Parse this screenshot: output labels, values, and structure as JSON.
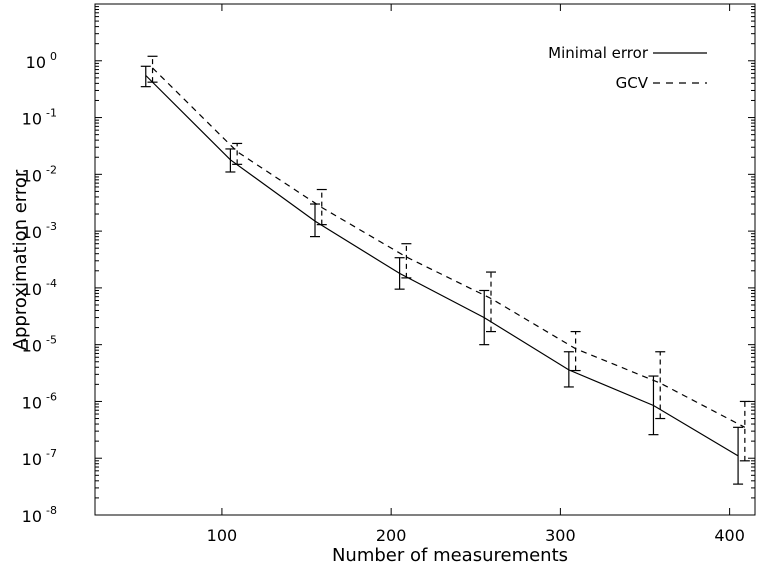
{
  "chart_data": {
    "type": "line",
    "title": "",
    "xlabel": "Number of measurements",
    "ylabel": "Approximation error",
    "xlim": [
      25,
      415
    ],
    "ylim": [
      1e-08,
      10.0
    ],
    "y_scale": "log",
    "x_ticks": [
      100,
      200,
      300,
      400
    ],
    "y_ticks": [
      {
        "base": "10",
        "exp": "0",
        "value": 1
      },
      {
        "base": "10",
        "exp": "-1",
        "value": 0.1
      },
      {
        "base": "10",
        "exp": "-2",
        "value": 0.01
      },
      {
        "base": "10",
        "exp": "-3",
        "value": 0.001
      },
      {
        "base": "10",
        "exp": "-4",
        "value": 0.0001
      },
      {
        "base": "10",
        "exp": "-5",
        "value": 1e-05
      },
      {
        "base": "10",
        "exp": "-6",
        "value": 1e-06
      },
      {
        "base": "10",
        "exp": "-7",
        "value": 1e-07
      },
      {
        "base": "10",
        "exp": "-8",
        "value": 1e-08
      }
    ],
    "legend_position": "top-right",
    "series": [
      {
        "name": "Minimal error",
        "style": "solid",
        "color": "#000000",
        "x": [
          55,
          105,
          155,
          205,
          255,
          305,
          355,
          405
        ],
        "y": [
          0.55,
          0.018,
          0.0015,
          0.00018,
          3e-05,
          3.6e-06,
          8.5e-07,
          1.1e-07
        ],
        "err_low": [
          0.35,
          0.011,
          0.0008,
          9.5e-05,
          1e-05,
          1.8e-06,
          2.6e-07,
          3.5e-08
        ],
        "err_high": [
          0.8,
          0.028,
          0.003,
          0.00034,
          9e-05,
          7.5e-06,
          2.8e-06,
          3.5e-07
        ]
      },
      {
        "name": "GCV",
        "style": "dashed",
        "color": "#000000",
        "x": [
          59,
          109,
          159,
          209,
          259,
          309,
          359,
          409
        ],
        "y": [
          0.75,
          0.025,
          0.0026,
          0.00035,
          6.5e-05,
          8.5e-06,
          2.1e-06,
          3.5e-07
        ],
        "err_low": [
          0.42,
          0.015,
          0.0013,
          0.00015,
          1.7e-05,
          3.5e-06,
          5e-07,
          9e-08
        ],
        "err_high": [
          1.2,
          0.035,
          0.0054,
          0.0006,
          0.00019,
          1.7e-05,
          7.5e-06,
          1e-06
        ]
      }
    ]
  }
}
